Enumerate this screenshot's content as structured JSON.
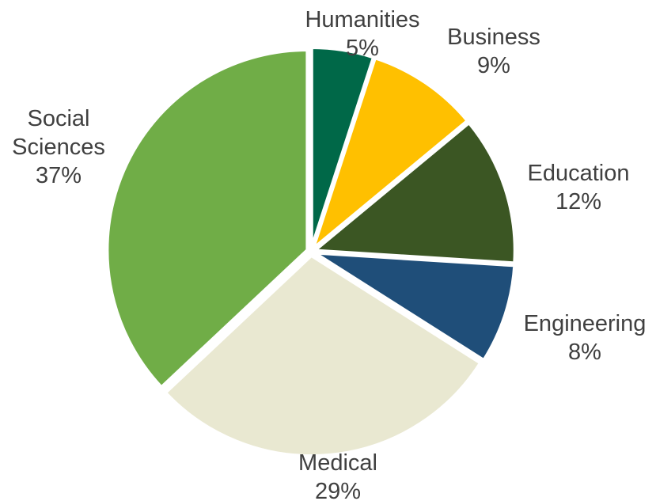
{
  "chart_data": {
    "type": "pie",
    "title": "",
    "slices": [
      {
        "name": "Humanities",
        "value": 5,
        "label": "5%",
        "color": "#006848"
      },
      {
        "name": "Business",
        "value": 9,
        "label": "9%",
        "color": "#ffc000"
      },
      {
        "name": "Education",
        "value": 12,
        "label": "12%",
        "color": "#3b5623"
      },
      {
        "name": "Engineering",
        "value": 8,
        "label": "8%",
        "color": "#1f4e79"
      },
      {
        "name": "Medical",
        "value": 29,
        "label": "29%",
        "color": "#e9e8d1"
      },
      {
        "name": "Social Sciences",
        "value": 37,
        "label": "37%",
        "color": "#70ad47"
      }
    ],
    "legend": "none",
    "start": "12 o'clock",
    "direction": "clockwise",
    "border_color": "#ffffff"
  }
}
